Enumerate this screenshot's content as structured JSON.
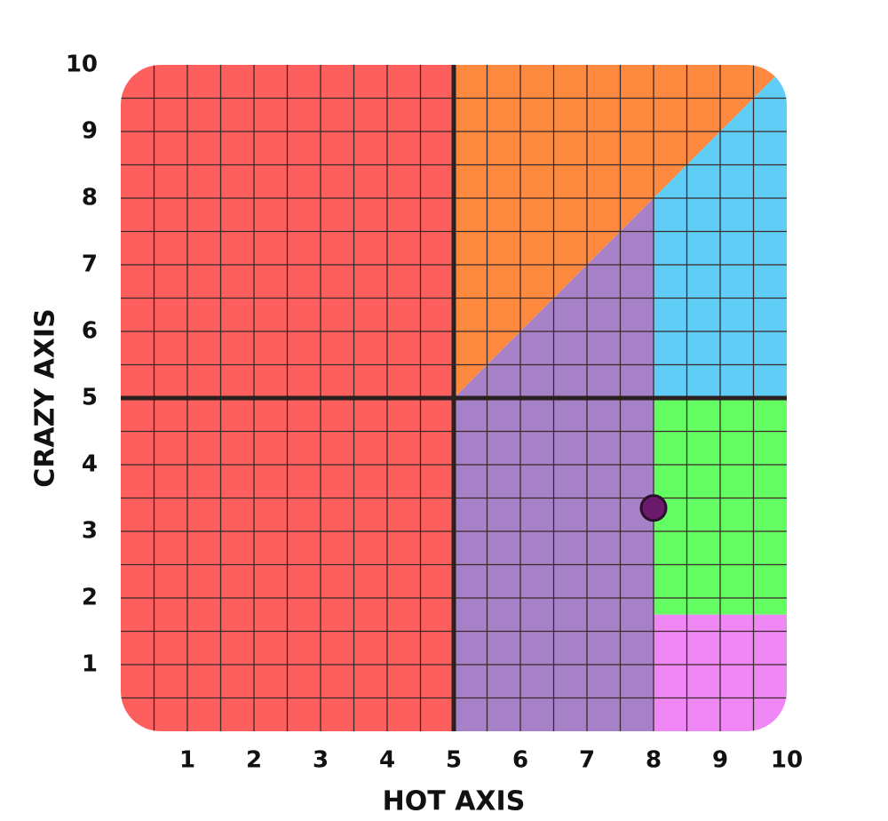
{
  "chart_data": {
    "type": "scatter",
    "xlabel": "HOT AXIS",
    "ylabel": "CRAZY AXIS",
    "xlim": [
      0,
      10
    ],
    "ylim": [
      0,
      10
    ],
    "xticks": [
      1,
      2,
      3,
      4,
      5,
      6,
      7,
      8,
      9,
      10
    ],
    "yticks": [
      1,
      2,
      3,
      4,
      5,
      6,
      7,
      8,
      9,
      10
    ],
    "grid": true,
    "grid_step": 0.5,
    "crosshair": [
      5,
      5
    ],
    "regions": [
      {
        "color": "#fd5f5f",
        "points": [
          [
            0,
            0
          ],
          [
            5,
            0
          ],
          [
            5,
            10
          ],
          [
            0,
            10
          ]
        ]
      },
      {
        "color": "#fd8a3f",
        "points": [
          [
            5,
            5
          ],
          [
            5,
            10
          ],
          [
            10,
            10
          ]
        ]
      },
      {
        "color": "#5fcdf5",
        "points": [
          [
            8,
            5
          ],
          [
            8,
            8
          ],
          [
            10,
            10
          ],
          [
            10,
            5
          ]
        ]
      },
      {
        "color": "#a681c7",
        "points": [
          [
            5,
            0
          ],
          [
            8,
            0
          ],
          [
            8,
            8
          ],
          [
            5,
            5
          ]
        ]
      },
      {
        "color": "#63fc63",
        "points": [
          [
            8,
            1.75
          ],
          [
            10,
            1.75
          ],
          [
            10,
            5
          ],
          [
            8,
            5
          ]
        ]
      },
      {
        "color": "#ef88f6",
        "points": [
          [
            8,
            0
          ],
          [
            10,
            0
          ],
          [
            10,
            1.75
          ],
          [
            8,
            1.75
          ]
        ]
      }
    ],
    "series": [
      {
        "color": "#6b1a6b",
        "x": [
          8
        ],
        "values": [
          3.35
        ]
      }
    ]
  }
}
